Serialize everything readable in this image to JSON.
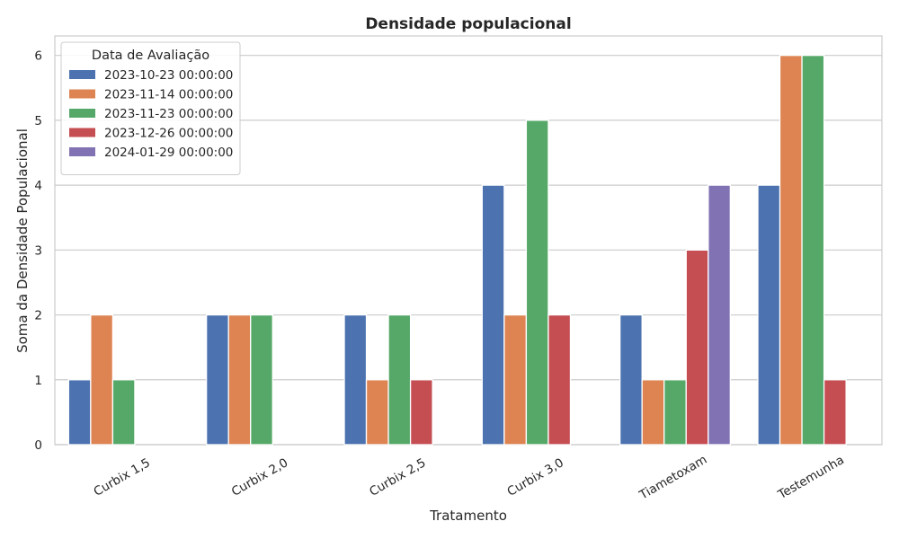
{
  "chart_data": {
    "type": "bar",
    "title": "Densidade populacional",
    "xlabel": "Tratamento",
    "ylabel": "Soma da Densidade Populacional",
    "categories": [
      "Curbix 1,5",
      "Curbix 2,0",
      "Curbix 2,5",
      "Curbix 3,0",
      "Tiametoxam",
      "Testemunha"
    ],
    "ylim": [
      0,
      6.3
    ],
    "yticks": [
      0,
      1,
      2,
      3,
      4,
      5,
      6
    ],
    "grid": true,
    "legend": {
      "title": "Data de Avaliação",
      "placement": "top-left"
    },
    "series": [
      {
        "name": "2023-10-23 00:00:00",
        "color": "#4c72b0",
        "values": [
          1,
          2,
          2,
          4,
          2,
          4
        ]
      },
      {
        "name": "2023-11-14 00:00:00",
        "color": "#dd8452",
        "values": [
          2,
          2,
          1,
          2,
          1,
          6
        ]
      },
      {
        "name": "2023-11-23 00:00:00",
        "color": "#55a868",
        "values": [
          1,
          2,
          2,
          5,
          1,
          6
        ]
      },
      {
        "name": "2023-12-26 00:00:00",
        "color": "#c44e52",
        "values": [
          null,
          null,
          1,
          2,
          3,
          1
        ]
      },
      {
        "name": "2024-01-29 00:00:00",
        "color": "#8172b3",
        "values": [
          null,
          null,
          null,
          null,
          4,
          null
        ]
      }
    ]
  }
}
